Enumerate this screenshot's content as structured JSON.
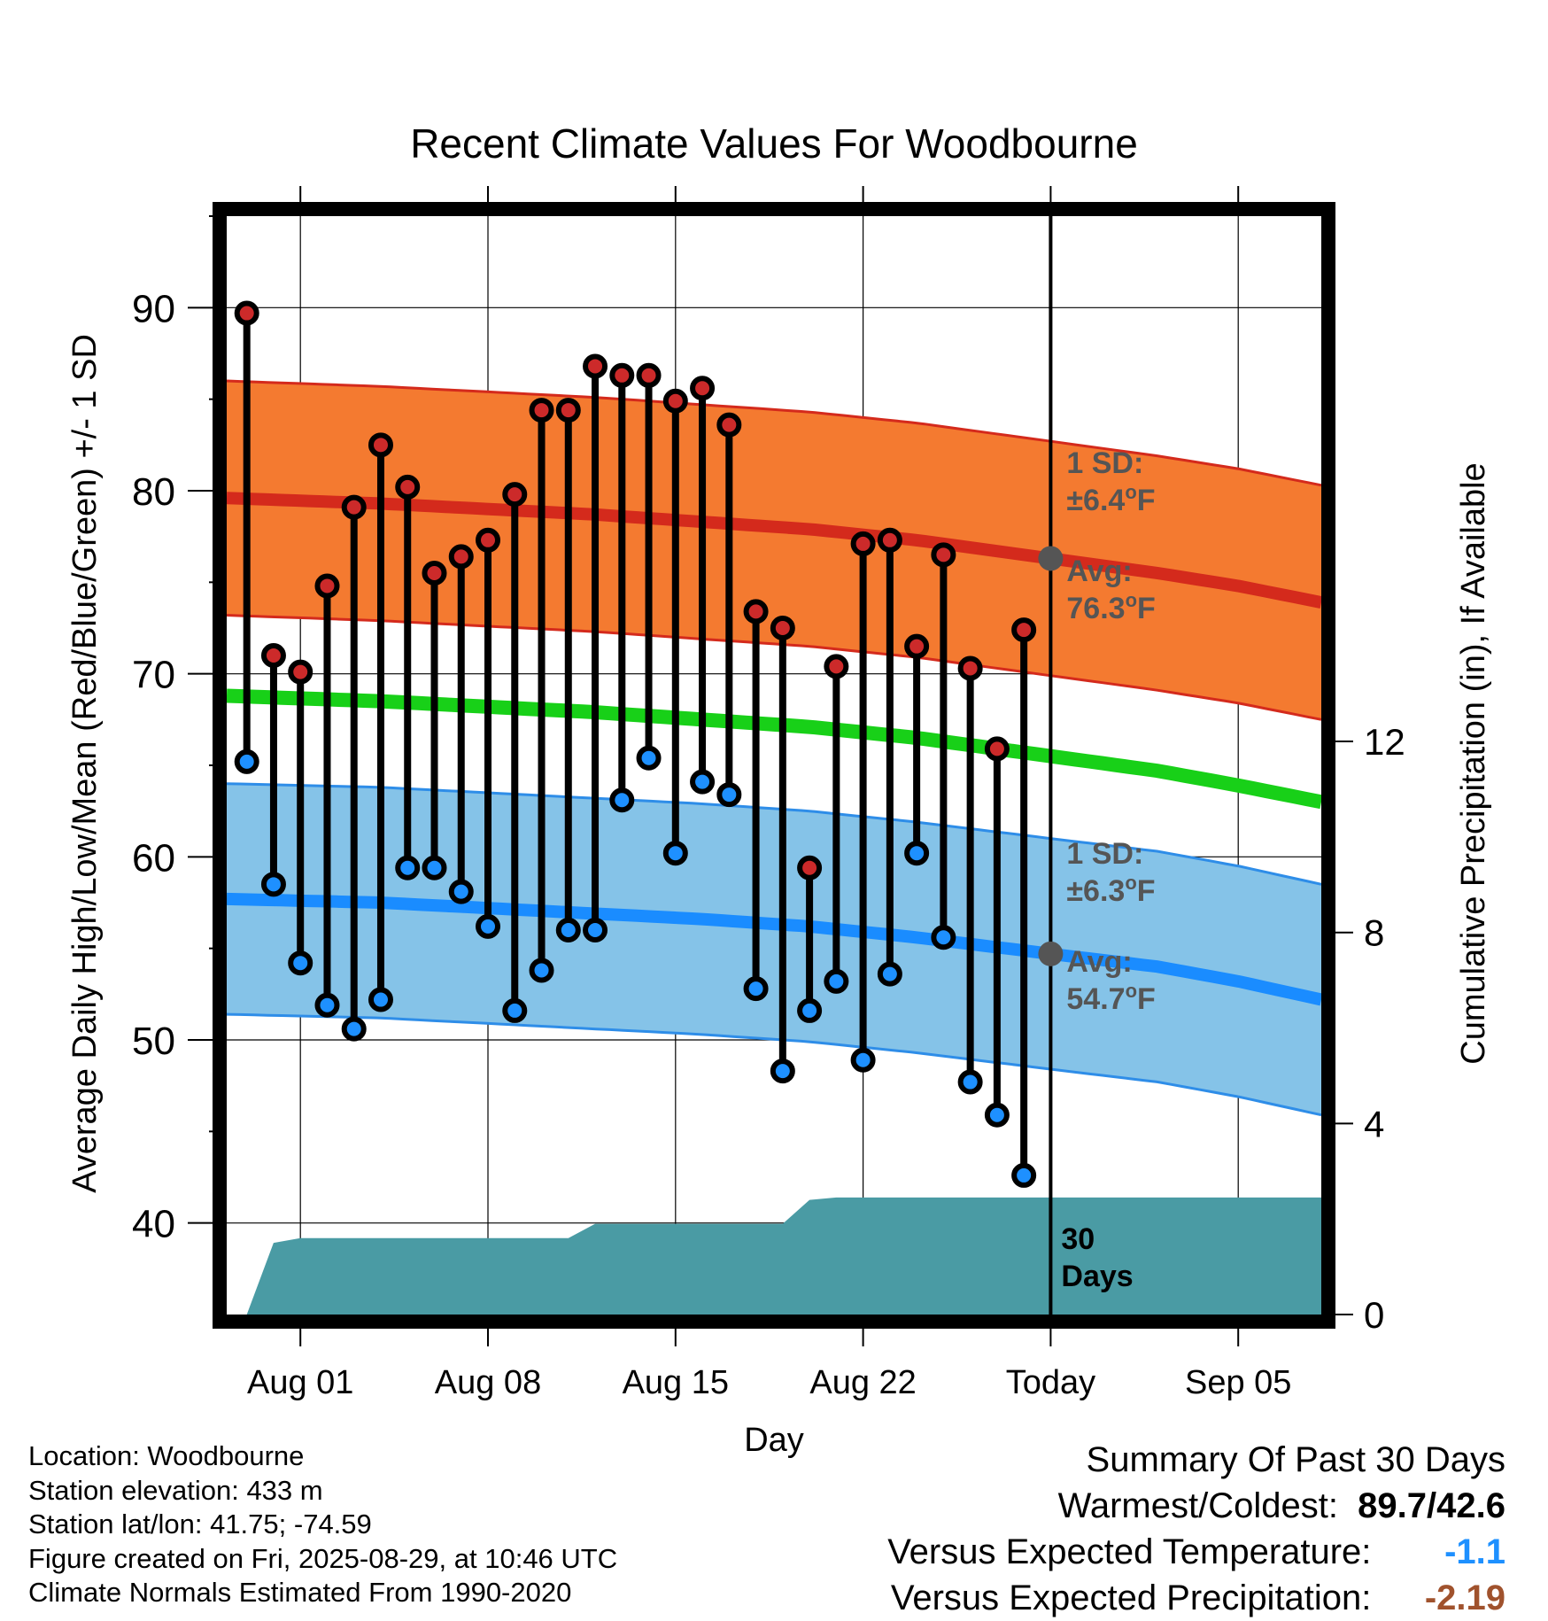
{
  "chart_data": {
    "type": "line",
    "title": "Recent Climate Values For Woodbourne",
    "xlabel": "Day",
    "ylabel": "Average Daily High/Low/Mean (Red/Blue/Green) +/- 1 SD",
    "y2label": "Cumulative Precipitation (in), If Available",
    "ylim": [
      35,
      95
    ],
    "y2lim": [
      0,
      23
    ],
    "yticks": [
      "40",
      "50",
      "60",
      "70",
      "80",
      "90"
    ],
    "y2ticks": [
      "0",
      "4",
      "8",
      "12"
    ],
    "xticks": [
      {
        "day": 1,
        "label": "Aug 01"
      },
      {
        "day": 8,
        "label": "Aug 08"
      },
      {
        "day": 15,
        "label": "Aug 15"
      },
      {
        "day": 22,
        "label": "Aug 22"
      },
      {
        "day": 29,
        "label": "Today"
      },
      {
        "day": 36,
        "label": "Sep 05"
      }
    ],
    "xlim": [
      -1.75,
      39.1
    ],
    "grid": true,
    "today_day": 29,
    "days": [
      {
        "date": "Jul 30",
        "high": 89.7,
        "low": 65.2
      },
      {
        "date": "Jul 31",
        "high": 71.0,
        "low": 58.5
      },
      {
        "date": "Aug 01",
        "high": 70.1,
        "low": 54.2
      },
      {
        "date": "Aug 02",
        "high": 74.8,
        "low": 51.9
      },
      {
        "date": "Aug 03",
        "high": 79.1,
        "low": 50.6
      },
      {
        "date": "Aug 04",
        "high": 82.5,
        "low": 52.2
      },
      {
        "date": "Aug 05",
        "high": 80.2,
        "low": 59.4
      },
      {
        "date": "Aug 06",
        "high": 75.5,
        "low": 59.4
      },
      {
        "date": "Aug 07",
        "high": 76.4,
        "low": 58.1
      },
      {
        "date": "Aug 08",
        "high": 77.3,
        "low": 56.2
      },
      {
        "date": "Aug 09",
        "high": 79.8,
        "low": 51.6
      },
      {
        "date": "Aug 10",
        "high": 84.4,
        "low": 53.8
      },
      {
        "date": "Aug 11",
        "high": 84.4,
        "low": 56.0
      },
      {
        "date": "Aug 12",
        "high": 86.8,
        "low": 56.0
      },
      {
        "date": "Aug 13",
        "high": 86.3,
        "low": 63.1
      },
      {
        "date": "Aug 14",
        "high": 86.3,
        "low": 65.4
      },
      {
        "date": "Aug 15",
        "high": 84.9,
        "low": 60.2
      },
      {
        "date": "Aug 16",
        "high": 85.6,
        "low": 64.1
      },
      {
        "date": "Aug 17",
        "high": 83.6,
        "low": 63.4
      },
      {
        "date": "Aug 18",
        "high": 73.4,
        "low": 52.8
      },
      {
        "date": "Aug 19",
        "high": 72.5,
        "low": 48.3
      },
      {
        "date": "Aug 20",
        "high": 59.4,
        "low": 51.6
      },
      {
        "date": "Aug 21",
        "high": 70.4,
        "low": 53.2
      },
      {
        "date": "Aug 22",
        "high": 77.1,
        "low": 48.9
      },
      {
        "date": "Aug 23",
        "high": 77.3,
        "low": 53.6
      },
      {
        "date": "Aug 24",
        "high": 71.5,
        "low": 60.2
      },
      {
        "date": "Aug 25",
        "high": 76.5,
        "low": 55.6
      },
      {
        "date": "Aug 26",
        "high": 70.3,
        "low": 47.7
      },
      {
        "date": "Aug 27",
        "high": 65.9,
        "low": 45.9
      },
      {
        "date": "Aug 28",
        "high": 72.4,
        "low": 42.6
      }
    ],
    "normals": {
      "days": [
        -1.75,
        4,
        8,
        12,
        16,
        20,
        24,
        29,
        33,
        36,
        39.1
      ],
      "avg_high": [
        79.6,
        79.3,
        79.0,
        78.7,
        78.3,
        77.9,
        77.3,
        76.3,
        75.5,
        74.8,
        73.9
      ],
      "avg_high_sd": 6.4,
      "avg_low": [
        57.7,
        57.5,
        57.2,
        56.9,
        56.6,
        56.2,
        55.6,
        54.7,
        54.0,
        53.2,
        52.2
      ],
      "avg_low_sd": 6.3,
      "mean": [
        68.8,
        68.5,
        68.2,
        67.9,
        67.5,
        67.1,
        66.5,
        65.5,
        64.7,
        63.9,
        63.0
      ]
    },
    "precip": {
      "days": [
        -1,
        0,
        1,
        2,
        11,
        12,
        19,
        20,
        21,
        29,
        39.1
      ],
      "values": [
        0.0,
        1.5,
        1.6,
        1.6,
        1.6,
        1.9,
        1.9,
        2.4,
        2.45,
        2.45,
        2.45
      ]
    },
    "annotations": {
      "high_sd_line1": "1 SD:",
      "high_sd_line2": "±6.4",
      "high_avg_line1": "Avg:",
      "high_avg_line2": "76.3",
      "low_sd_line1": "1 SD:",
      "low_sd_line2": "±6.3",
      "low_avg_line1": "Avg:",
      "low_avg_line2": "54.7",
      "degree_sign": "o",
      "unit": "F",
      "days_line1": "30",
      "days_line2": "Days"
    },
    "colors": {
      "high_band": "#f47a30",
      "high_band_edge": "#d42a1c",
      "high_avg": "#d42a1c",
      "low_band": "#85c3e8",
      "low_band_edge": "#2e8de8",
      "low_avg": "#1a8cff",
      "mean": "#18d018",
      "precip": "#4a9ba4",
      "high_marker": "#cc2a2a",
      "low_marker": "#1e90ff",
      "annotation_text": "#555555",
      "avg_dot": "#555555"
    }
  },
  "meta": {
    "location": "Location: Woodbourne",
    "elevation": "Station elevation: 433 m",
    "latlon": "Station lat/lon: 41.75; -74.59",
    "created": "Figure created on Fri, 2025-08-29, at 10:46 UTC",
    "normals": "Climate Normals Estimated From 1990-2020"
  },
  "summary": {
    "title": "Summary Of Past 30 Days",
    "warm_cold_label": "Warmest/Coldest:",
    "warm_cold_value": "89.7/42.6",
    "temp_label": "Versus Expected Temperature:",
    "temp_value": "-1.1",
    "temp_color": "#1e90ff",
    "precip_label": "Versus Expected Precipitation:",
    "precip_value": "-2.19",
    "precip_color": "#a0522d"
  }
}
